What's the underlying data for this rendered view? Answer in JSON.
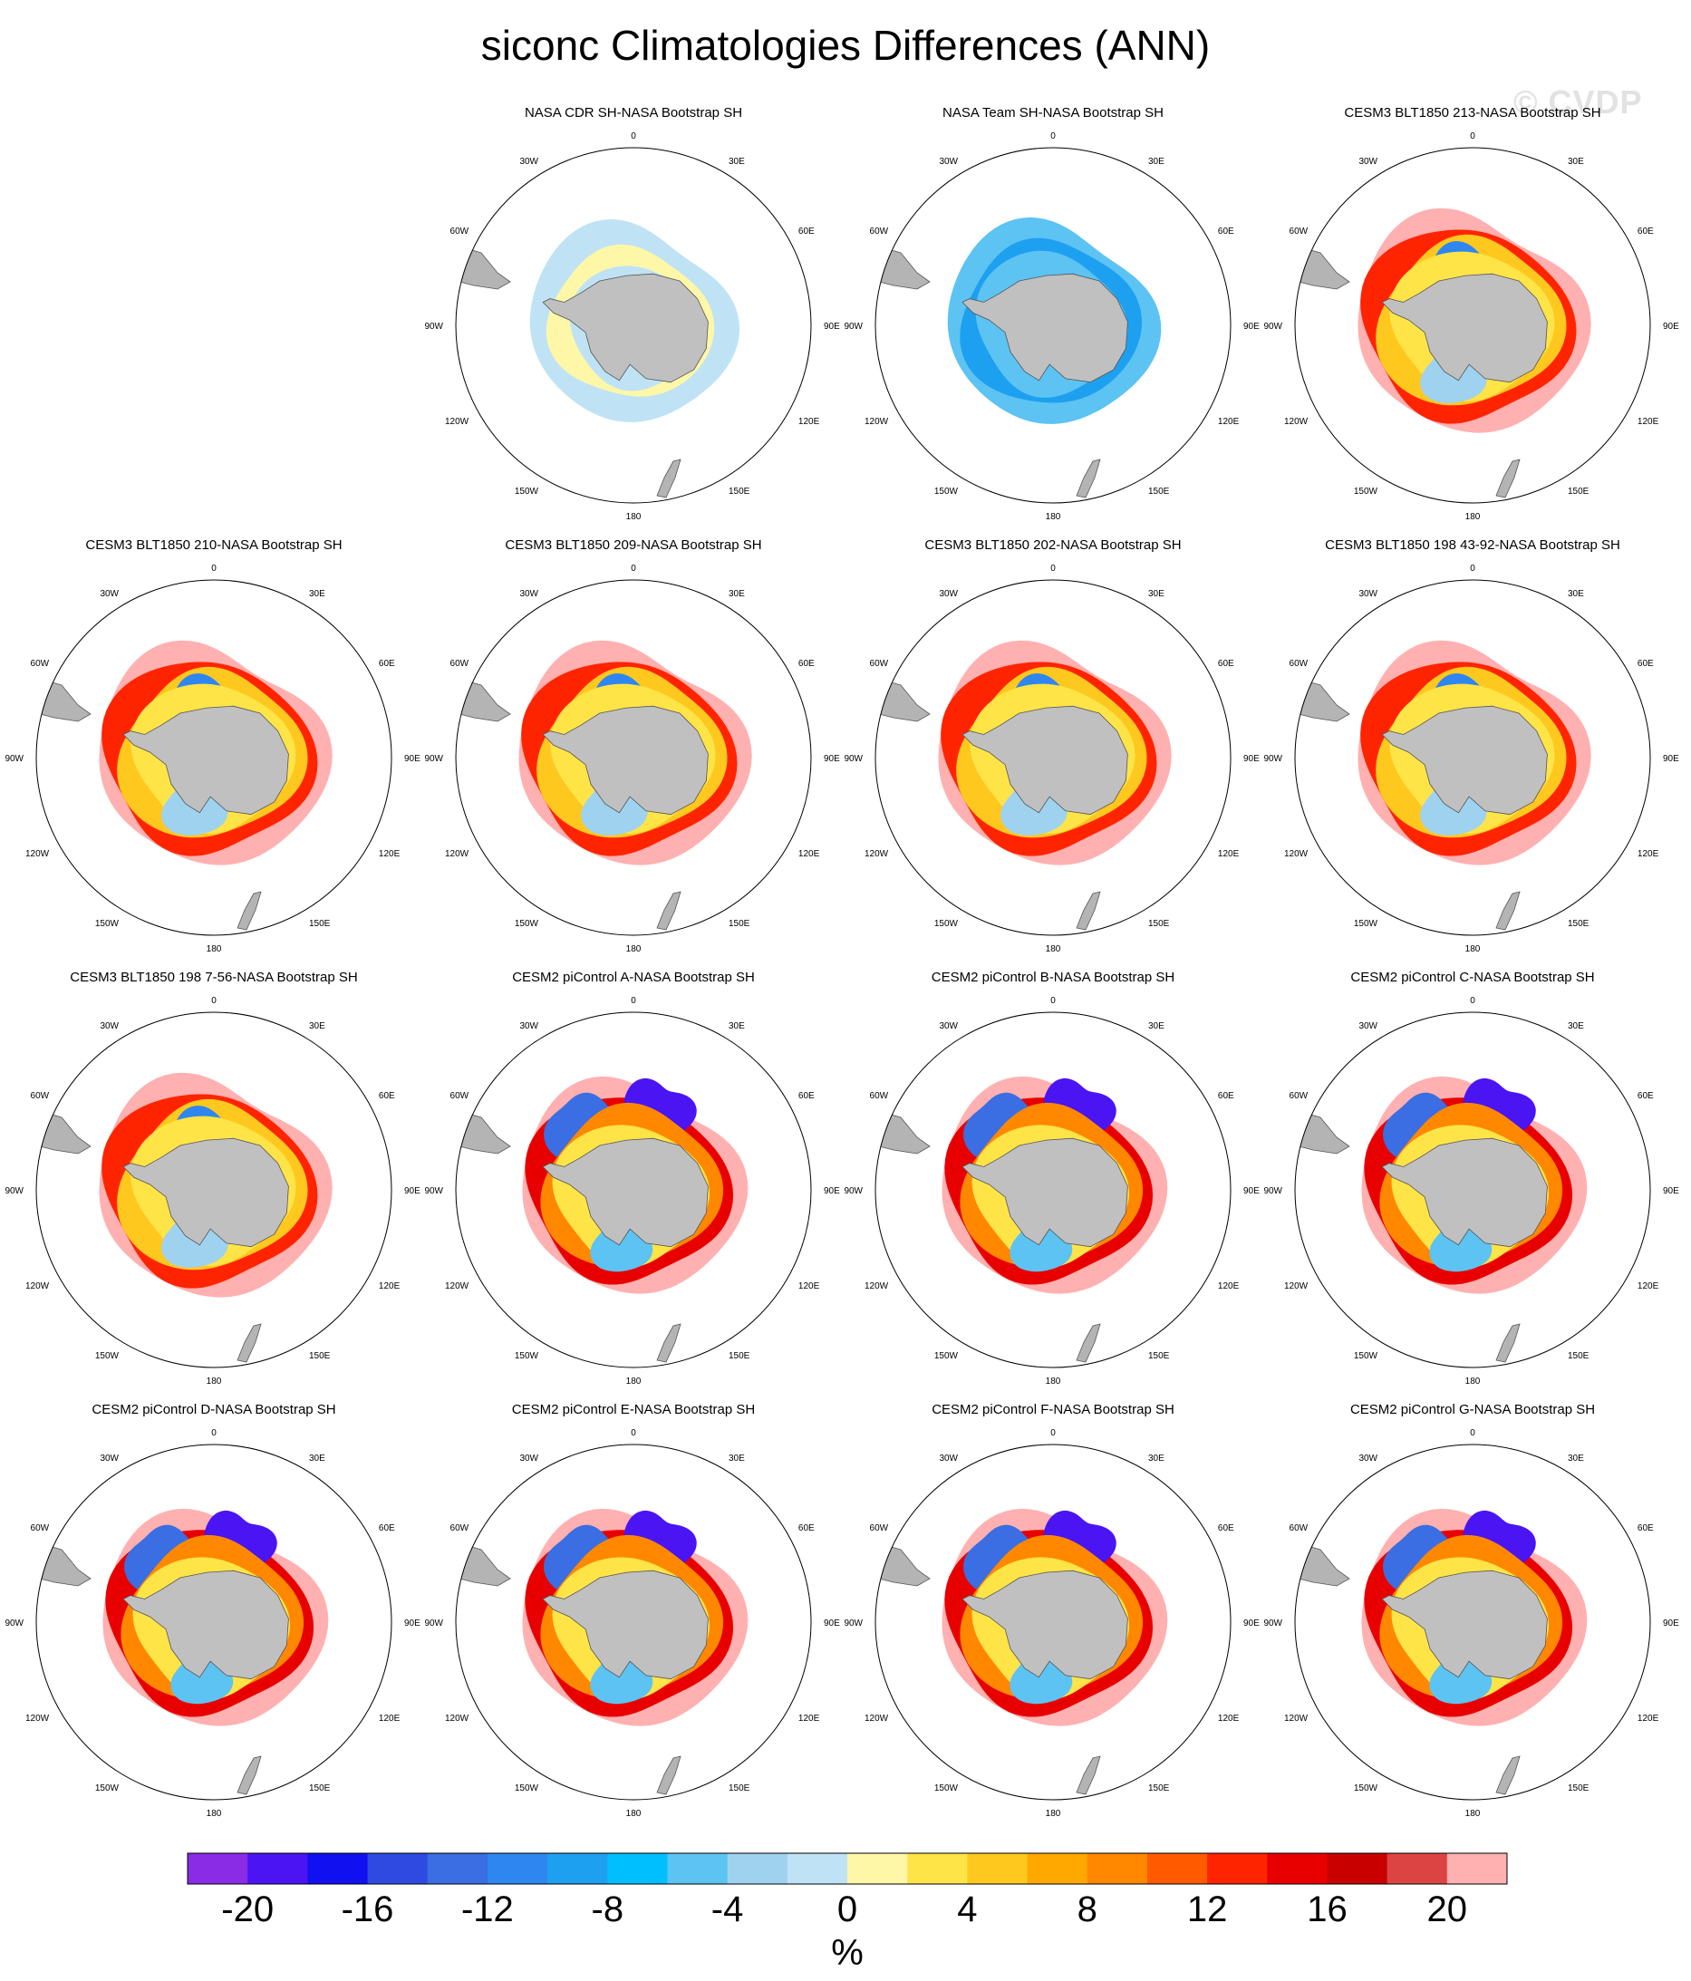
{
  "figure": {
    "title": "siconc Climatologies Differences (ANN)",
    "watermark": "© CVDP",
    "units": "%"
  },
  "chart_data": {
    "type": "heatmap",
    "projection": "south-polar-stereographic",
    "longitude_labels": [
      "0",
      "30E",
      "60E",
      "90E",
      "120E",
      "150E",
      "180",
      "150W",
      "120W",
      "90W",
      "60W",
      "30W"
    ],
    "colorbar": {
      "tick_labels": [
        "-20",
        "-16",
        "-12",
        "-8",
        "-4",
        "0",
        "4",
        "8",
        "12",
        "16",
        "20"
      ],
      "colors": [
        "#8a2be6",
        "#4b14f2",
        "#1010f0",
        "#2f4ae0",
        "#3a6ee2",
        "#2e86f0",
        "#1ea0f0",
        "#00bfff",
        "#5cc3f2",
        "#9fd2ef",
        "#bfe3f5",
        "#fff7a8",
        "#ffe448",
        "#ffc81e",
        "#ffa800",
        "#ff8800",
        "#ff5a00",
        "#ff2400",
        "#e80000",
        "#c80000",
        "#dc4444",
        "#ffb0b0"
      ]
    },
    "panels": [
      {
        "title": "NASA CDR SH-NASA Bootstrap SH",
        "pattern": "cdr"
      },
      {
        "title": "NASA Team SH-NASA Bootstrap SH",
        "pattern": "team"
      },
      {
        "title": "CESM3 BLT1850 213-NASA Bootstrap SH",
        "pattern": "cesm3"
      },
      {
        "title": "CESM3 BLT1850 210-NASA Bootstrap SH",
        "pattern": "cesm3"
      },
      {
        "title": "CESM3 BLT1850 209-NASA Bootstrap SH",
        "pattern": "cesm3"
      },
      {
        "title": "CESM3 BLT1850 202-NASA Bootstrap SH",
        "pattern": "cesm3"
      },
      {
        "title": "CESM3 BLT1850 198 43-92-NASA Bootstrap SH",
        "pattern": "cesm3"
      },
      {
        "title": "CESM3 BLT1850 198 7-56-NASA Bootstrap SH",
        "pattern": "cesm3"
      },
      {
        "title": "CESM2 piControl A-NASA Bootstrap SH",
        "pattern": "cesm2"
      },
      {
        "title": "CESM2 piControl B-NASA Bootstrap SH",
        "pattern": "cesm2"
      },
      {
        "title": "CESM2 piControl C-NASA Bootstrap SH",
        "pattern": "cesm2"
      },
      {
        "title": "CESM2 piControl D-NASA Bootstrap SH",
        "pattern": "cesm2"
      },
      {
        "title": "CESM2 piControl E-NASA Bootstrap SH",
        "pattern": "cesm2"
      },
      {
        "title": "CESM2 piControl F-NASA Bootstrap SH",
        "pattern": "cesm2"
      },
      {
        "title": "CESM2 piControl G-NASA Bootstrap SH",
        "pattern": "cesm2"
      }
    ]
  }
}
